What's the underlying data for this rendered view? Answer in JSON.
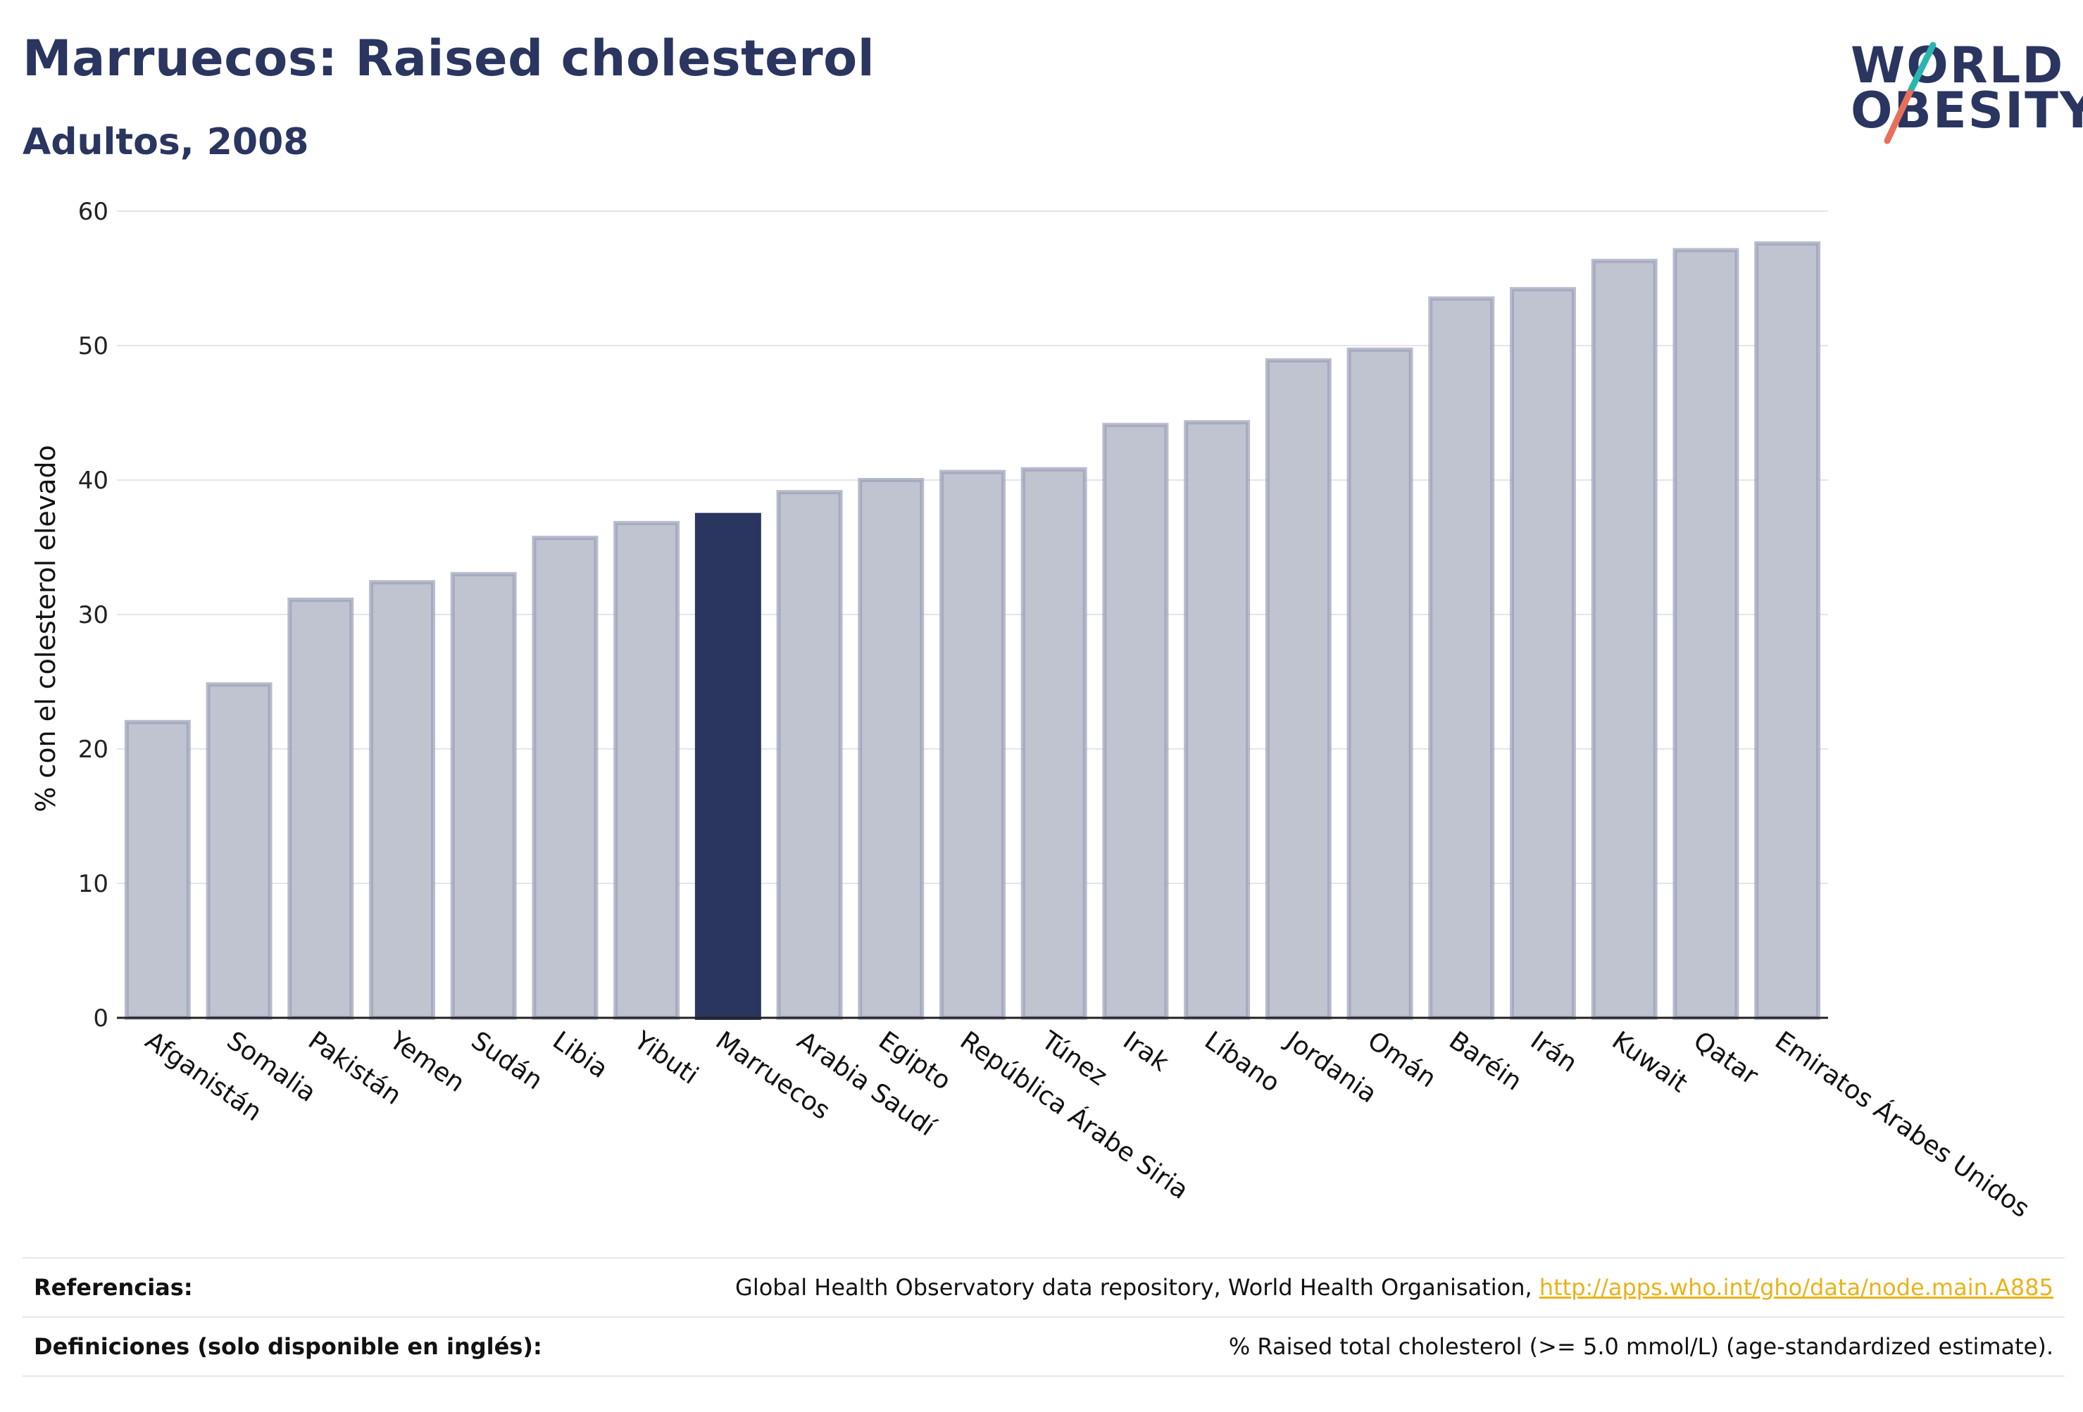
{
  "header": {
    "title": "Marruecos: Raised cholesterol",
    "subtitle": "Adultos, 2008"
  },
  "logo": {
    "line1": "WORLD",
    "line2": "OBESITY",
    "accent_colors": [
      "#2bb5b0",
      "#e8705a"
    ]
  },
  "chart_data": {
    "type": "bar",
    "ylabel": "% con el colesterol elevado",
    "xlabel": "",
    "ylim": [
      0,
      60
    ],
    "yticks": [
      0,
      10,
      20,
      30,
      40,
      50,
      60
    ],
    "grid": true,
    "highlight": "Marruecos",
    "colors": {
      "bar": "#c0c3d0",
      "bar_edge": "#9aa0b8",
      "highlight": "#2a3560"
    },
    "categories": [
      "Afganistán",
      "Somalia",
      "Pakistán",
      "Yemen",
      "Sudán",
      "Libia",
      "Yibuti",
      "Marruecos",
      "Arabia Saudí",
      "Egipto",
      "República Árabe Siria",
      "Túnez",
      "Irak",
      "Líbano",
      "Jordania",
      "Omán",
      "Baréin",
      "Irán",
      "Kuwait",
      "Qatar",
      "Emiratos Árabes Unidos"
    ],
    "values": [
      22.0,
      24.8,
      31.1,
      32.4,
      33.0,
      35.7,
      36.8,
      37.4,
      39.1,
      40.0,
      40.6,
      40.8,
      44.1,
      44.3,
      48.9,
      49.7,
      53.5,
      54.2,
      56.3,
      57.1,
      57.6
    ]
  },
  "references": {
    "label": "Referencias:",
    "text": "Global Health Observatory data repository, World Health Organisation, ",
    "link": "http://apps.who.int/gho/data/node.main.A885"
  },
  "definitions": {
    "label": "Definiciones (solo disponible en inglés):",
    "text": "% Raised total cholesterol (>= 5.0 mmol/L) (age-standardized estimate)."
  }
}
